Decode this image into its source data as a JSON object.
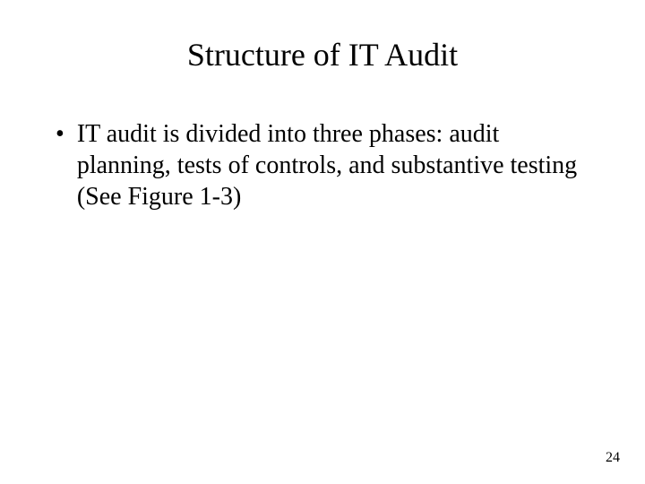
{
  "slide": {
    "title": "Structure of IT Audit",
    "bullet_marker": "•",
    "bullets": [
      "IT audit is divided into three phases: audit planning, tests of controls, and substantive testing (See Figure 1-3)"
    ],
    "page_number": "24"
  },
  "style": {
    "background_color": "#ffffff",
    "text_color": "#000000",
    "title_fontsize": 36,
    "body_fontsize": 28,
    "page_number_fontsize": 16,
    "font_family": "Times New Roman"
  }
}
